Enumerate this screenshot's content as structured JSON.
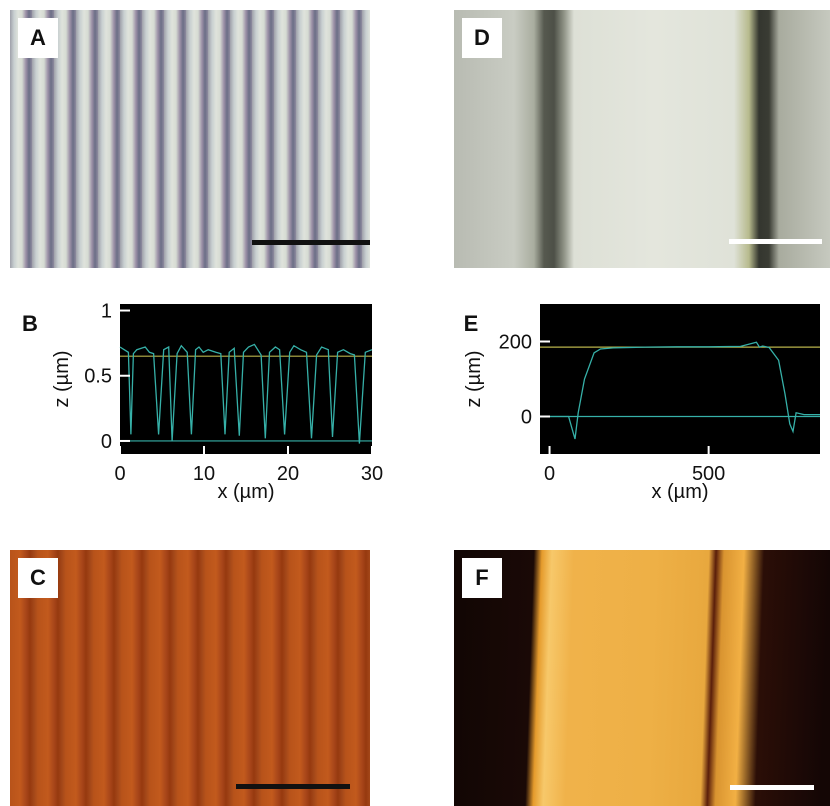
{
  "panels": {
    "a": {
      "label": "A"
    },
    "b": {
      "label": "B"
    },
    "c": {
      "label": "C"
    },
    "d": {
      "label": "D"
    },
    "e": {
      "label": "E"
    },
    "f": {
      "label": "F"
    }
  },
  "colors": {
    "scalebar_dark": "#111111",
    "scalebar_light": "#ffffff",
    "plot_bg": "#000000",
    "trace": "#36b0a8",
    "reference_line": "#b8b24a",
    "baseline": "#36b0a8",
    "c_stripe_light": "#b8531a",
    "c_stripe_dark": "#9c3f10",
    "f_fill": "#f2a93a"
  },
  "chart_data": [
    {
      "panel": "B",
      "type": "line",
      "xlabel": "x (µm)",
      "ylabel": "z (µm)",
      "xlim": [
        0,
        30
      ],
      "ylim": [
        -0.1,
        1.05
      ],
      "xticks": [
        0,
        10,
        20,
        30
      ],
      "xtick_labels": [
        "0",
        "10",
        "20",
        "30"
      ],
      "yticks": [
        0,
        0.5,
        1
      ],
      "ytick_labels": [
        "0",
        "0.5",
        "1"
      ],
      "reference_levels": [
        0.65,
        0
      ],
      "x": [
        0,
        0.5,
        1,
        1.3,
        1.6,
        2,
        3,
        3.5,
        4,
        4.6,
        5.2,
        5.8,
        6.2,
        6.8,
        7.3,
        8,
        8.5,
        9,
        9.4,
        9.9,
        10.5,
        11.4,
        12,
        12.5,
        13,
        13.6,
        14.2,
        14.7,
        15.3,
        16,
        16.8,
        17.3,
        17.8,
        18.5,
        19,
        19.6,
        20.2,
        20.7,
        21.5,
        22.2,
        22.8,
        23.4,
        24,
        24.8,
        25.3,
        25.9,
        26.6,
        27.4,
        27.9,
        28.5,
        29.2,
        30
      ],
      "y": [
        0.72,
        0.7,
        0.68,
        0.05,
        0.67,
        0.7,
        0.72,
        0.68,
        0.67,
        0.05,
        0.7,
        0.72,
        0,
        0.67,
        0.73,
        0.68,
        0.05,
        0.7,
        0.72,
        0.68,
        0.7,
        0.68,
        0.67,
        0.05,
        0.68,
        0.71,
        0.04,
        0.68,
        0.72,
        0.74,
        0.66,
        0.02,
        0.68,
        0.72,
        0.7,
        0.05,
        0.68,
        0.73,
        0.7,
        0.68,
        0.02,
        0.66,
        0.72,
        0.7,
        0.03,
        0.68,
        0.7,
        0.67,
        0.66,
        -0.02,
        0.68,
        0.7
      ]
    },
    {
      "panel": "E",
      "type": "line",
      "xlabel": "x (µm)",
      "ylabel": "z (µm)",
      "xlim": [
        -30,
        850
      ],
      "ylim": [
        -100,
        300
      ],
      "xticks": [
        0,
        500
      ],
      "xtick_labels": [
        "0",
        "500"
      ],
      "yticks": [
        0,
        200
      ],
      "ytick_labels": [
        "0",
        "200"
      ],
      "reference_levels": [
        185,
        0
      ],
      "x": [
        -30,
        40,
        60,
        70,
        80,
        90,
        110,
        140,
        160,
        200,
        300,
        400,
        500,
        600,
        650,
        660,
        670,
        690,
        720,
        740,
        755,
        765,
        775,
        800,
        850
      ],
      "y": [
        0,
        0,
        0,
        -30,
        -60,
        10,
        100,
        170,
        180,
        183,
        185,
        186,
        186,
        187,
        198,
        185,
        188,
        184,
        150,
        60,
        -20,
        -40,
        10,
        5,
        5
      ]
    }
  ]
}
